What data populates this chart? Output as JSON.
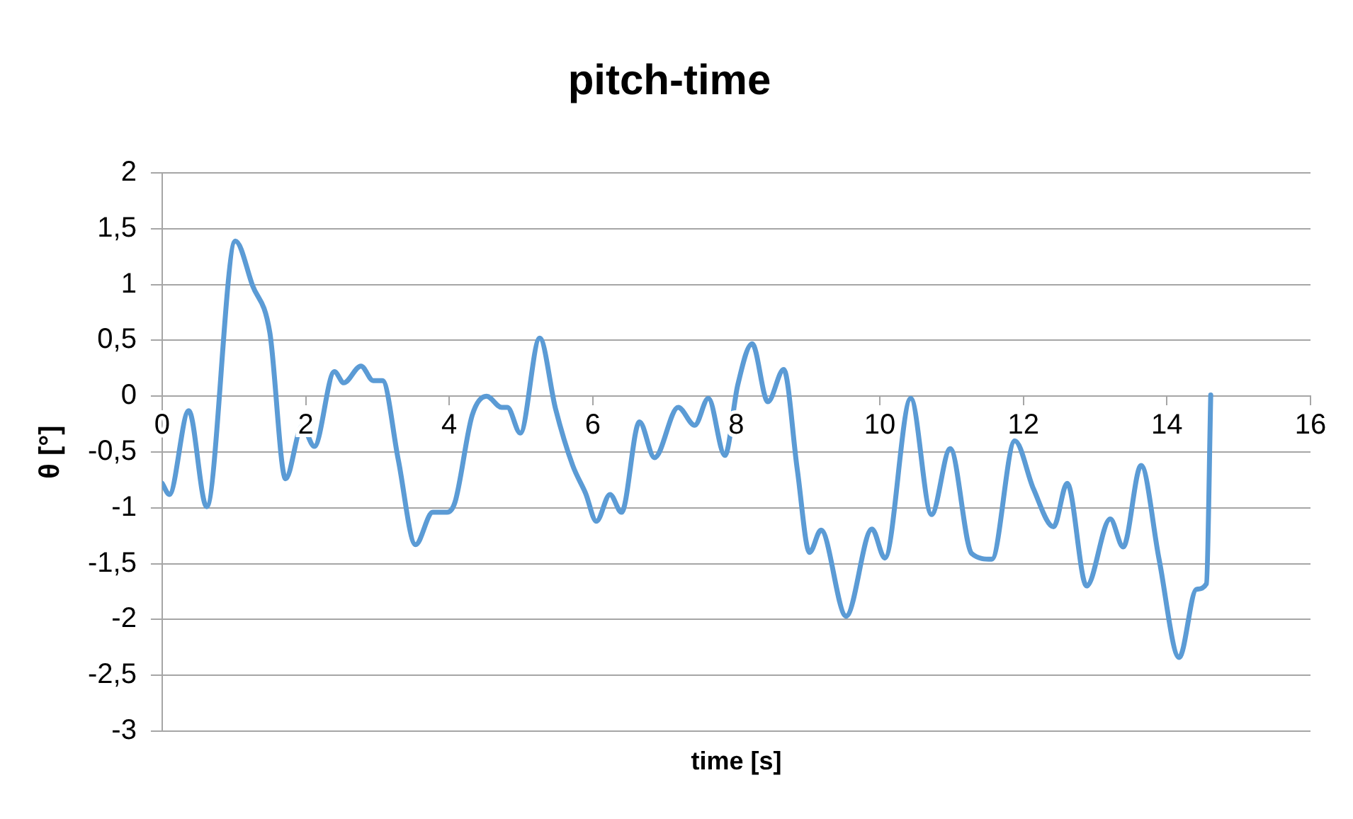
{
  "chart_data": {
    "type": "line",
    "title": "pitch-time",
    "xlabel": "time [s]",
    "ylabel": "θ [°]",
    "x": [
      0,
      0.1,
      0.37,
      0.62,
      1.02,
      1.26,
      1.5,
      1.72,
      1.95,
      2.12,
      2.4,
      2.53,
      2.77,
      2.94,
      3.07,
      3.29,
      3.53,
      3.77,
      3.97,
      4.08,
      4.32,
      4.52,
      4.73,
      4.81,
      4.99,
      5.26,
      5.48,
      5.72,
      5.9,
      6.05,
      6.24,
      6.4,
      6.65,
      6.86,
      7.19,
      7.42,
      7.61,
      7.84,
      8.02,
      8.22,
      8.44,
      8.66,
      8.85,
      9.02,
      9.18,
      9.53,
      9.89,
      10.07,
      10.43,
      10.72,
      10.98,
      11.28,
      11.56,
      11.88,
      12.14,
      12.42,
      12.61,
      12.88,
      13.21,
      13.39,
      13.64,
      13.89,
      14.17,
      14.41,
      14.55,
      14.61
    ],
    "series": [
      {
        "color": "#5b9bd5",
        "values": [
          -0.78,
          -0.88,
          -0.13,
          -0.99,
          1.39,
          0.99,
          0.57,
          -0.74,
          -0.27,
          -0.45,
          0.22,
          0.12,
          0.27,
          0.14,
          0.14,
          -0.57,
          -1.33,
          -1.04,
          -1.04,
          -0.95,
          -0.17,
          0,
          -0.1,
          -0.1,
          -0.33,
          0.52,
          -0.11,
          -0.62,
          -0.87,
          -1.12,
          -0.88,
          -1.04,
          -0.23,
          -0.55,
          -0.1,
          -0.26,
          -0.02,
          -0.53,
          0.1,
          0.47,
          -0.05,
          0.24,
          -0.66,
          -1.4,
          -1.2,
          -1.97,
          -1.19,
          -1.45,
          -0.02,
          -1.06,
          -0.47,
          -1.41,
          -1.46,
          -0.4,
          -0.83,
          -1.17,
          -0.78,
          -1.7,
          -1.1,
          -1.35,
          -0.62,
          -1.46,
          -2.34,
          -1.73,
          -1.68,
          0.01
        ]
      }
    ],
    "xlim": [
      0,
      16
    ],
    "xticks": [
      0,
      2,
      4,
      6,
      8,
      10,
      12,
      14,
      16
    ],
    "ylim": [
      -3,
      2
    ],
    "yticks": [
      2,
      {
        "value": 1.5,
        "label": "1,5"
      },
      1,
      {
        "value": 0.5,
        "label": "0,5"
      },
      0,
      {
        "value": -0.5,
        "label": "-0,5"
      },
      -1,
      {
        "value": -1.5,
        "label": "-1,5"
      },
      -2,
      {
        "value": -2.5,
        "label": "-2,5"
      },
      -3
    ],
    "grid": "y",
    "legend": false,
    "marker": "none",
    "line_style": "solid"
  }
}
